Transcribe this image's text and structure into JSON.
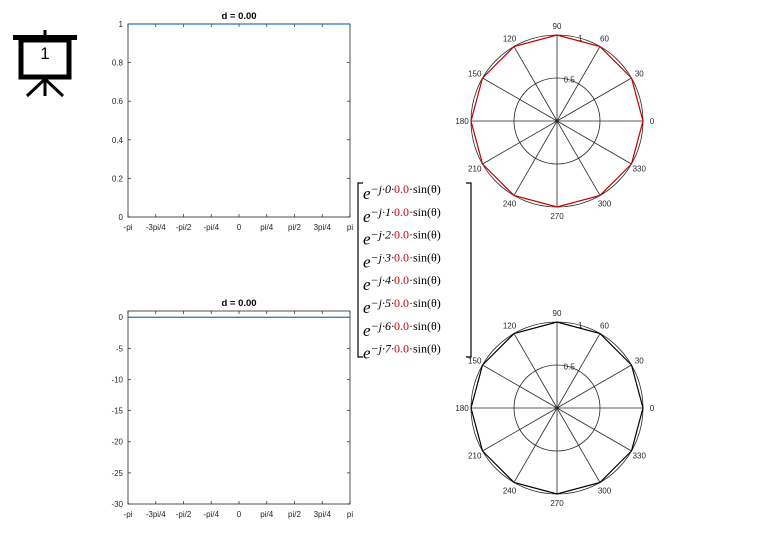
{
  "slide_number": "1",
  "icons": {
    "presentation": "presentation-board-icon"
  },
  "colors": {
    "line": "#1f77b4",
    "polar_top": "#c00000",
    "polar_bottom": "#000000",
    "d_value": "#d00000",
    "axis": "#262626",
    "grid": "#262626"
  },
  "chart_data": [
    {
      "type": "line",
      "title": "d = 0.00",
      "x": [
        "-pi",
        "-3pi/4",
        "-pi/2",
        "-pi/4",
        "0",
        "pi/4",
        "pi/2",
        "3pi/4",
        "pi"
      ],
      "x_ticks": [
        "-pi",
        "-3pi/4",
        "-pi/2",
        "-pi/4",
        "0",
        "pi/4",
        "pi/2",
        "3pi/4",
        "pi"
      ],
      "y_ticks": [
        "0",
        "0.2",
        "0.4",
        "0.6",
        "0.8",
        "1"
      ],
      "ylim": [
        0,
        1
      ],
      "series": [
        {
          "values": [
            1,
            1,
            1,
            1,
            1,
            1,
            1,
            1,
            1
          ]
        }
      ],
      "grid": false
    },
    {
      "type": "line",
      "title": "d = 0.00",
      "x": [
        "-pi",
        "-3pi/4",
        "-pi/2",
        "-pi/4",
        "0",
        "pi/4",
        "pi/2",
        "3pi/4",
        "pi"
      ],
      "x_ticks": [
        "-pi",
        "-3pi/4",
        "-pi/2",
        "-pi/4",
        "0",
        "pi/4",
        "pi/2",
        "3pi/4",
        "pi"
      ],
      "y_ticks": [
        "0",
        "-5",
        "-10",
        "-15",
        "-20",
        "-25",
        "-30"
      ],
      "ylim": [
        -30,
        1
      ],
      "series": [
        {
          "values": [
            0,
            0,
            0,
            0,
            0,
            0,
            0,
            0,
            0
          ]
        }
      ],
      "grid": false
    },
    {
      "type": "polar",
      "angle_labels": [
        "0",
        "30",
        "60",
        "90",
        "120",
        "150",
        "180",
        "210",
        "240",
        "270",
        "300",
        "330"
      ],
      "radial_labels": [
        "0.5",
        "1"
      ],
      "rlim": [
        0,
        1
      ],
      "series": [
        {
          "values": [
            1,
            1,
            1,
            1,
            1,
            1,
            1,
            1,
            1,
            1,
            1,
            1,
            1
          ]
        }
      ],
      "grid": true
    },
    {
      "type": "polar",
      "angle_labels": [
        "0",
        "30",
        "60",
        "90",
        "120",
        "150",
        "180",
        "210",
        "240",
        "270",
        "300",
        "330"
      ],
      "radial_labels": [
        "0.5",
        "1"
      ],
      "rlim": [
        0,
        1
      ],
      "series": [
        {
          "values": [
            1,
            1,
            1,
            1,
            1,
            1,
            1,
            1,
            1,
            1,
            1,
            1,
            1
          ]
        }
      ],
      "grid": true
    }
  ],
  "steering_vector": {
    "base": "e",
    "prefix": "−j·",
    "d_text": "0.0",
    "suffix": "·sin(θ)",
    "indices": [
      "0",
      "1",
      "2",
      "3",
      "4",
      "5",
      "6",
      "7"
    ]
  }
}
